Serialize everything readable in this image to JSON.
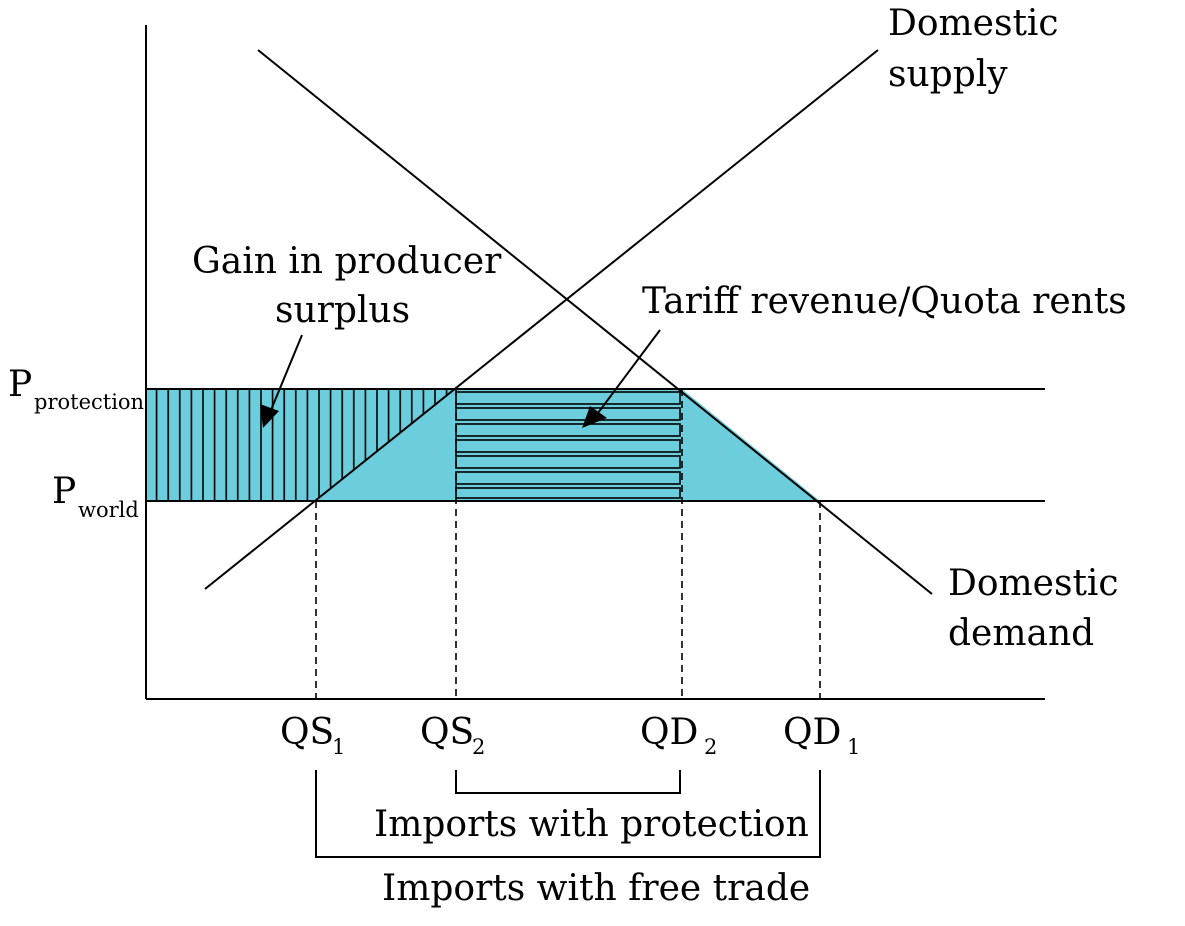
{
  "colors": {
    "shaded_area": "#6ccddc",
    "ink": "#000000",
    "background": "#ffffff"
  },
  "curves": {
    "supply_label_line1": "Domestic",
    "supply_label_line2": "supply",
    "demand_label_line1": "Domestic",
    "demand_label_line2": "demand"
  },
  "prices": {
    "protection": {
      "main": "P",
      "sub": "protection"
    },
    "world": {
      "main": "P",
      "sub": "world"
    }
  },
  "quantities": {
    "qs1": {
      "main": "QS",
      "sub": "1"
    },
    "qs2": {
      "main": "QS",
      "sub": "2"
    },
    "qd2": {
      "main": "QD",
      "sub": "2"
    },
    "qd1": {
      "main": "QD",
      "sub": "1"
    }
  },
  "annotations": {
    "producer_surplus_line1": "Gain in producer",
    "producer_surplus_line2": "surplus",
    "tariff_revenue": "Tariff revenue/Quota rents"
  },
  "brackets": {
    "imports_protection": "Imports with protection",
    "imports_free_trade": "Imports with free trade"
  }
}
